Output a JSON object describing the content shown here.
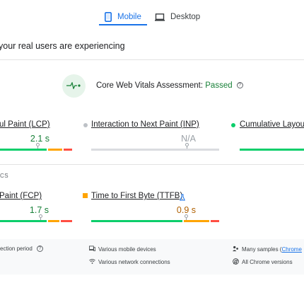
{
  "tabs": [
    {
      "label": "Mobile",
      "icon": "smartphone-icon",
      "selected": true
    },
    {
      "label": "Desktop",
      "icon": "laptop-icon",
      "selected": false
    }
  ],
  "section_heading": "your real users are experiencing",
  "assessment": {
    "label": "Core Web Vitals Assessment: ",
    "status": "Passed",
    "status_color": "#188038"
  },
  "metrics_row1": [
    {
      "title": "ul Paint (LCP)",
      "value": "2.1 s",
      "value_color": "#188038",
      "status": "good",
      "marker": 0.52
    },
    {
      "title": "Interaction to Next Paint (INP)",
      "value": "N/A",
      "value_color": "#9aa0a6",
      "status": "none",
      "marker": 0.5
    },
    {
      "title": "Cumulative Layout",
      "value": "",
      "value_color": "#188038",
      "status": "good"
    }
  ],
  "sub_heading": "CS",
  "metrics_row2": [
    {
      "title": "Paint (FCP)",
      "value": "1.7 s",
      "value_color": "#188038",
      "status": "good",
      "marker": 0.55
    },
    {
      "title": "Time to First Byte (TTFB)",
      "value": "0.9 s",
      "value_color": "#b06000",
      "status": "needs-improvement",
      "badge": "experimental-flask-icon",
      "marker": 0.72
    }
  ],
  "footer": {
    "col1": [
      "ection period",
      ""
    ],
    "col2": [
      "Various mobile devices",
      "Various network connections"
    ],
    "col3_prefix": "Many samples (",
    "col3_link": "Chrome",
    "col3_line2": "All Chrome versions"
  },
  "colors": {
    "good": "#0cce6b",
    "average": "#ffa400",
    "poor": "#ff4e42",
    "accent": "#1a73e8"
  }
}
